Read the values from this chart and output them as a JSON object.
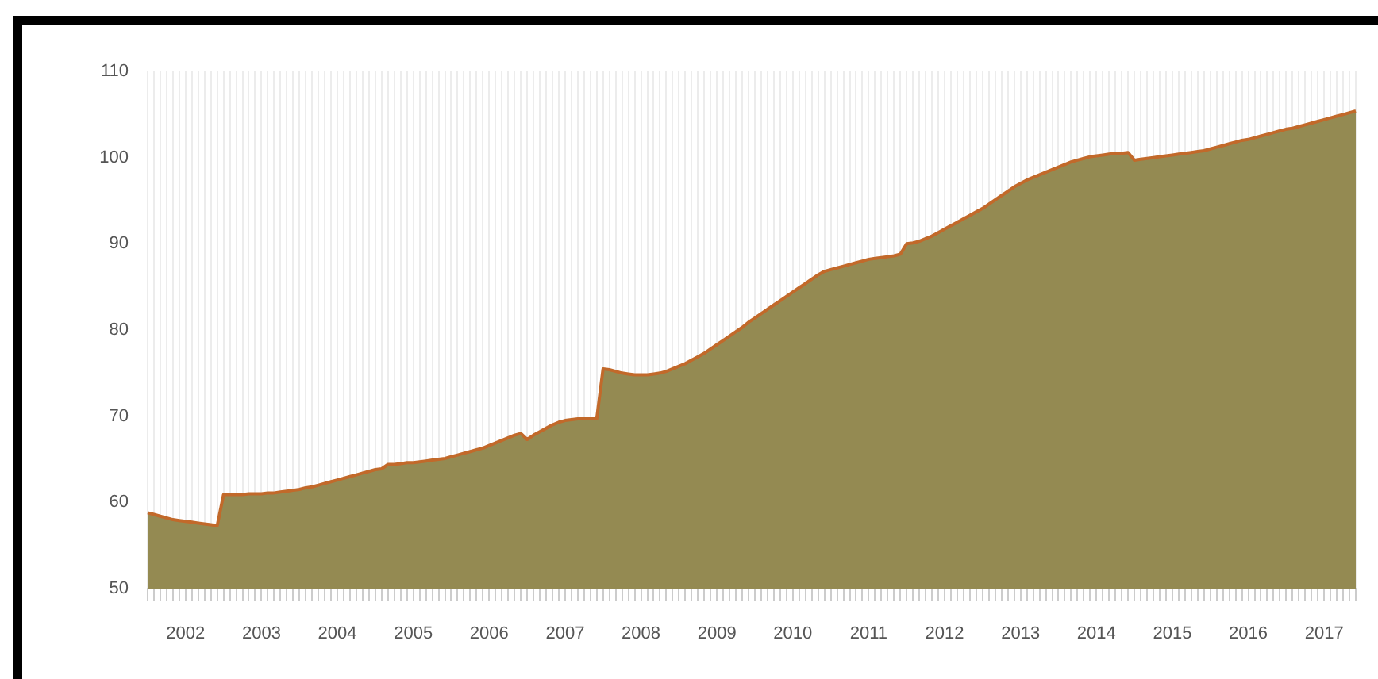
{
  "chart_data": {
    "type": "area",
    "categories": [
      null,
      null,
      null,
      null,
      null,
      null,
      "2002",
      null,
      null,
      null,
      null,
      null,
      null,
      null,
      null,
      null,
      null,
      null,
      "2003",
      null,
      null,
      null,
      null,
      null,
      null,
      null,
      null,
      null,
      null,
      null,
      "2004",
      null,
      null,
      null,
      null,
      null,
      null,
      null,
      null,
      null,
      null,
      null,
      "2005",
      null,
      null,
      null,
      null,
      null,
      null,
      null,
      null,
      null,
      null,
      null,
      "2006",
      null,
      null,
      null,
      null,
      null,
      null,
      null,
      null,
      null,
      null,
      null,
      "2007",
      null,
      null,
      null,
      null,
      null,
      null,
      null,
      null,
      null,
      null,
      null,
      "2008",
      null,
      null,
      null,
      null,
      null,
      null,
      null,
      null,
      null,
      null,
      null,
      "2009",
      null,
      null,
      null,
      null,
      null,
      null,
      null,
      null,
      null,
      null,
      null,
      "2010",
      null,
      null,
      null,
      null,
      null,
      null,
      null,
      null,
      null,
      null,
      null,
      "2011",
      null,
      null,
      null,
      null,
      null,
      null,
      null,
      null,
      null,
      null,
      null,
      "2012",
      null,
      null,
      null,
      null,
      null,
      null,
      null,
      null,
      null,
      null,
      null,
      "2013",
      null,
      null,
      null,
      null,
      null,
      null,
      null,
      null,
      null,
      null,
      null,
      "2014",
      null,
      null,
      null,
      null,
      null,
      null,
      null,
      null,
      null,
      null,
      null,
      "2015",
      null,
      null,
      null,
      null,
      null,
      null,
      null,
      null,
      null,
      null,
      null,
      "2016",
      null,
      null,
      null,
      null,
      null,
      null,
      null,
      null,
      null,
      null,
      null,
      "2017",
      null,
      null,
      null,
      null,
      null
    ],
    "series": [
      {
        "color": "#948a52",
        "values": [
          58.8,
          58.6,
          58.4,
          58.2,
          58.0,
          57.9,
          57.8,
          57.7,
          57.6,
          57.5,
          57.4,
          57.3,
          60.9,
          60.9,
          60.9,
          60.9,
          61.0,
          61.0,
          61.0,
          61.1,
          61.1,
          61.2,
          61.3,
          61.4,
          61.5,
          61.7,
          61.8,
          62.0,
          62.2,
          62.4,
          62.6,
          62.8,
          63.0,
          63.2,
          63.4,
          63.6,
          63.8,
          63.9,
          64.4,
          64.4,
          64.5,
          64.6,
          64.6,
          64.7,
          64.8,
          64.9,
          65.0,
          65.1,
          65.3,
          65.5,
          65.7,
          65.9,
          66.1,
          66.3,
          66.6,
          66.9,
          67.2,
          67.5,
          67.8,
          68.0,
          67.3,
          67.8,
          68.2,
          68.6,
          69.0,
          69.3,
          69.5,
          69.6,
          69.7,
          69.7,
          69.7,
          69.7,
          75.5,
          75.4,
          75.2,
          75.0,
          74.9,
          74.8,
          74.8,
          74.8,
          74.9,
          75.0,
          75.2,
          75.5,
          75.8,
          76.1,
          76.5,
          76.9,
          77.3,
          77.8,
          78.3,
          78.8,
          79.3,
          79.8,
          80.3,
          80.9,
          81.4,
          81.9,
          82.4,
          82.9,
          83.4,
          83.9,
          84.4,
          84.9,
          85.4,
          85.9,
          86.4,
          86.8,
          87.0,
          87.2,
          87.4,
          87.6,
          87.8,
          88.0,
          88.2,
          88.3,
          88.4,
          88.5,
          88.6,
          88.8,
          90.0,
          90.1,
          90.3,
          90.6,
          90.9,
          91.3,
          91.7,
          92.1,
          92.5,
          92.9,
          93.3,
          93.7,
          94.1,
          94.6,
          95.1,
          95.6,
          96.1,
          96.6,
          97.0,
          97.4,
          97.7,
          98.0,
          98.3,
          98.6,
          98.9,
          99.2,
          99.5,
          99.7,
          99.9,
          100.1,
          100.2,
          100.3,
          100.4,
          100.5,
          100.5,
          100.6,
          99.7,
          99.8,
          99.9,
          100.0,
          100.1,
          100.2,
          100.3,
          100.4,
          100.5,
          100.6,
          100.7,
          100.8,
          101.0,
          101.2,
          101.4,
          101.6,
          101.8,
          102.0,
          102.1,
          102.3,
          102.5,
          102.7,
          102.9,
          103.1,
          103.3,
          103.4,
          103.6,
          103.8,
          104.0,
          104.2,
          104.4,
          104.6,
          104.8,
          105.0,
          105.2,
          105.4
        ]
      }
    ],
    "ylim": [
      50,
      110
    ],
    "yticks": [
      50,
      60,
      70,
      80,
      90,
      100,
      110
    ],
    "grid": "x",
    "legend": false,
    "marker": "none"
  }
}
